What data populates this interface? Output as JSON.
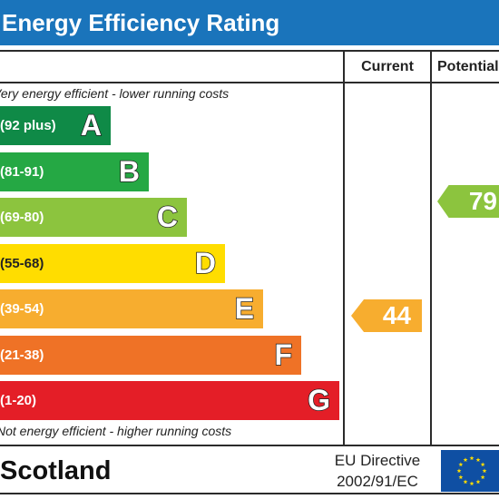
{
  "title": "Energy Efficiency Rating",
  "columns": {
    "current": "Current",
    "potential": "Potential"
  },
  "top_note": "Very energy efficient - lower running costs",
  "bottom_note": "Not energy efficient - higher running costs",
  "bands": [
    {
      "range": "(92 plus)",
      "letter": "A",
      "color": "#0f8a47"
    },
    {
      "range": "(81-91)",
      "letter": "B",
      "color": "#25a844"
    },
    {
      "range": "(69-80)",
      "letter": "C",
      "color": "#8cc43e"
    },
    {
      "range": "(55-68)",
      "letter": "D",
      "color": "#ffdd00"
    },
    {
      "range": "(39-54)",
      "letter": "E",
      "color": "#f7ad2f"
    },
    {
      "range": "(21-38)",
      "letter": "F",
      "color": "#ef7226"
    },
    {
      "range": "(1-20)",
      "letter": "G",
      "color": "#e41e27"
    }
  ],
  "current_rating": {
    "value": "44",
    "color": "#f7ad2f"
  },
  "potential_rating": {
    "value": "79",
    "color": "#8cc43e"
  },
  "footer": {
    "region": "Scotland",
    "directive_line1": "EU Directive",
    "directive_line2": "2002/91/EC",
    "flag_color": "#0f4fa3",
    "star_color": "#ffdd00"
  }
}
